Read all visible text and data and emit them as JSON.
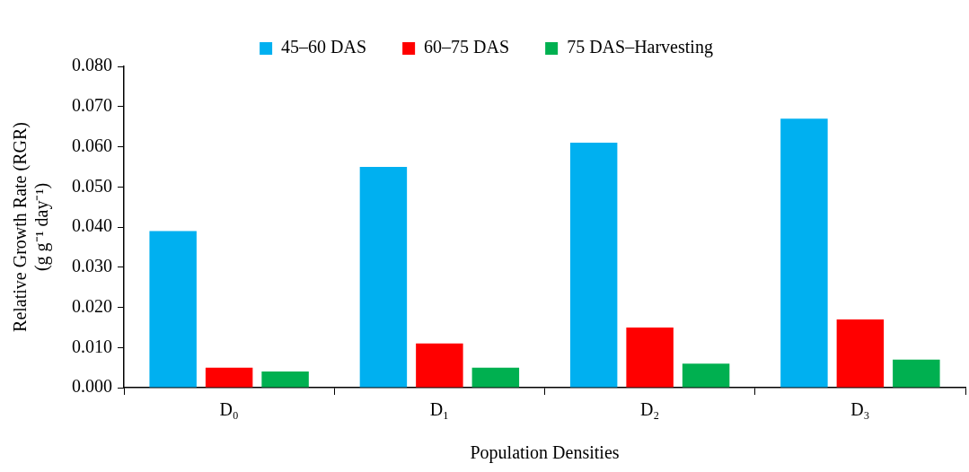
{
  "chart_data": {
    "type": "bar",
    "xlabel": "Population Densities",
    "ylabel": "Relative Growth Rate (RGR)\n(g g⁻¹ day⁻¹)",
    "categories": [
      "D₀",
      "D₁",
      "D₂",
      "D₃"
    ],
    "series": [
      {
        "name": "45–60 DAS",
        "color": "#00b0f0",
        "values": [
          0.039,
          0.055,
          0.061,
          0.067
        ]
      },
      {
        "name": "60–75 DAS",
        "color": "#ff0000",
        "values": [
          0.005,
          0.011,
          0.015,
          0.017
        ]
      },
      {
        "name": "75 DAS–Harvesting",
        "color": "#00b050",
        "values": [
          0.004,
          0.005,
          0.006,
          0.007
        ]
      }
    ],
    "ylim": [
      0,
      0.08
    ],
    "yticks": [
      {
        "value": 0,
        "label": "0.000"
      },
      {
        "value": 0.01,
        "label": "0.010"
      },
      {
        "value": 0.02,
        "label": "0.020"
      },
      {
        "value": 0.03,
        "label": "0.030"
      },
      {
        "value": 0.04,
        "label": "0.040"
      },
      {
        "value": 0.05,
        "label": "0.050"
      },
      {
        "value": 0.06,
        "label": "0.060"
      },
      {
        "value": 0.07,
        "label": "0.070"
      },
      {
        "value": 0.08,
        "label": "0.080"
      }
    ],
    "grid": false,
    "legend": "top"
  }
}
